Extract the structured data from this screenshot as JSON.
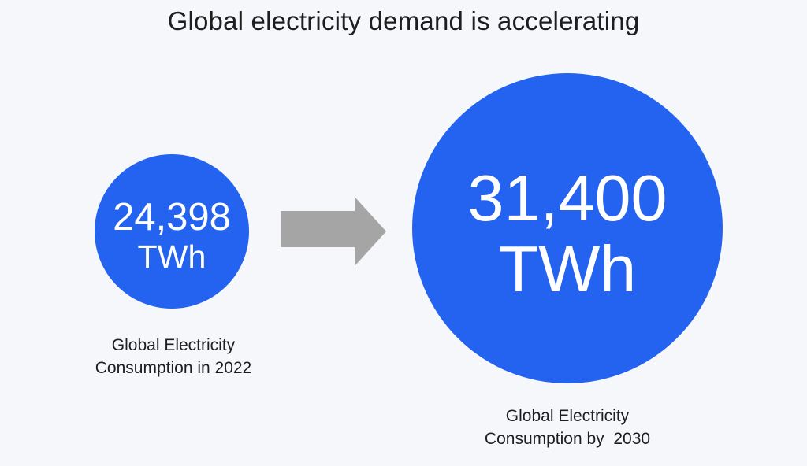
{
  "title": "Global electricity demand is accelerating",
  "colors": {
    "bubble": "#2463f0",
    "arrow": "#a5a5a5",
    "background": "#f5f7fb",
    "text": "#1e1e1e"
  },
  "chart_data": {
    "type": "bubble",
    "title": "Global electricity demand is accelerating",
    "series": [
      {
        "value": 24398,
        "value_label": "24,398",
        "unit": "TWh",
        "caption_line1": "Global Electricity",
        "caption_line2": "Consumption in 2022"
      },
      {
        "value": 31400,
        "value_label": "31,400",
        "unit": "TWh",
        "caption_line1": "Global Electricity",
        "caption_line2": "Consumption by  2030"
      }
    ],
    "connector": "arrow-right-icon"
  }
}
